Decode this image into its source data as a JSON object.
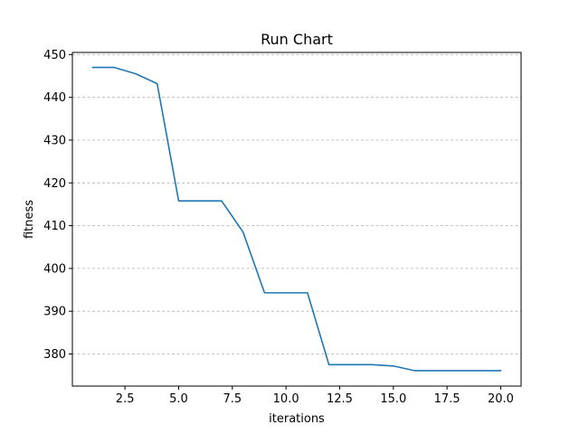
{
  "chart_data": {
    "type": "line",
    "title": "Run Chart",
    "xlabel": "iterations",
    "ylabel": "fitness",
    "xlim": [
      0.05,
      20.95
    ],
    "ylim": [
      372.5,
      450.5
    ],
    "xticks": [
      2.5,
      5.0,
      7.5,
      10.0,
      12.5,
      15.0,
      17.5,
      20.0
    ],
    "xtick_labels": [
      "2.5",
      "5.0",
      "7.5",
      "10.0",
      "12.5",
      "15.0",
      "17.5",
      "20.0"
    ],
    "yticks": [
      380,
      390,
      400,
      410,
      420,
      430,
      440,
      450
    ],
    "ytick_labels": [
      "380",
      "390",
      "400",
      "410",
      "420",
      "430",
      "440",
      "450"
    ],
    "grid": "y-dashed",
    "line_color": "#1f77b4",
    "series": [
      {
        "x": [
          1,
          2,
          3,
          4,
          5,
          6,
          7,
          8,
          9,
          10,
          11,
          12,
          13,
          14,
          15,
          16,
          17,
          18,
          19,
          20
        ],
        "values": [
          447.0,
          447.0,
          445.5,
          443.2,
          415.8,
          415.8,
          415.8,
          408.5,
          394.3,
          394.3,
          394.3,
          377.5,
          377.5,
          377.5,
          377.2,
          376.1,
          376.1,
          376.1,
          376.1,
          376.1
        ]
      }
    ]
  }
}
